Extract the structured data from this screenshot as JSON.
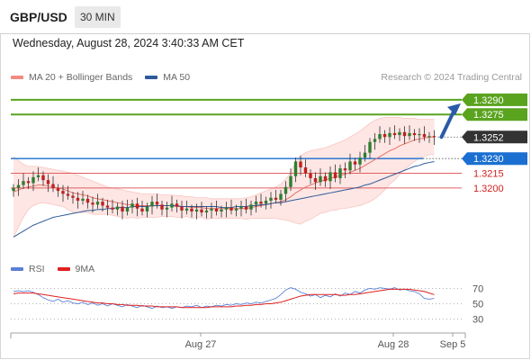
{
  "header": {
    "pair": "GBP/USD",
    "timeframe": "30 MIN",
    "datetime": "Wednesday, August 28, 2024 3:40:33 AM CET",
    "copyright": "Research © 2024 Trading Central"
  },
  "legend_main": [
    {
      "label": "MA 20 + Bollinger Bands",
      "color": "#f28b82"
    },
    {
      "label": "MA 50",
      "color": "#2f5b9a"
    }
  ],
  "legend_rsi": [
    {
      "label": "RSI",
      "color": "#5b7fd6"
    },
    {
      "label": "9MA",
      "color": "#e02020"
    }
  ],
  "colors": {
    "resistance": "#5aa31f",
    "current": "#333333",
    "pivot": "#1a6fd1",
    "support": "#e06060",
    "support_text": "#d32020",
    "bull": "#2f7d2f",
    "bear": "#c02020",
    "band_fill": "#fde3e1",
    "arrow": "#2a5aa8"
  },
  "chart_data": {
    "type": "candlestick",
    "instrument": "GBP/USD",
    "interval": "30 MIN",
    "x_ticks": [
      "Aug 27",
      "Aug 28",
      "Sep 5"
    ],
    "y_range": [
      1.3142,
      1.33
    ],
    "levels": [
      {
        "value": 1.329,
        "label": "1.3290",
        "kind": "resistance"
      },
      {
        "value": 1.3275,
        "label": "1.3275",
        "kind": "resistance"
      },
      {
        "value": 1.3252,
        "label": "1.3252",
        "kind": "current"
      },
      {
        "value": 1.323,
        "label": "1.3230",
        "kind": "pivot"
      },
      {
        "value": 1.3215,
        "label": "1.3215",
        "kind": "support"
      },
      {
        "value": 1.32,
        "label": "1.3200",
        "kind": "support"
      }
    ],
    "close": [
      1.32,
      1.3203,
      1.3207,
      1.3205,
      1.3211,
      1.3213,
      1.3208,
      1.3204,
      1.32,
      1.3197,
      1.3194,
      1.3192,
      1.319,
      1.3187,
      1.3189,
      1.3185,
      1.3183,
      1.3186,
      1.3182,
      1.318,
      1.3178,
      1.3181,
      1.3176,
      1.318,
      1.3184,
      1.3179,
      1.3176,
      1.3181,
      1.3186,
      1.3183,
      1.3178,
      1.318,
      1.3184,
      1.3181,
      1.3177,
      1.3179,
      1.3176,
      1.3178,
      1.3175,
      1.3177,
      1.3179,
      1.3176,
      1.3178,
      1.318,
      1.3177,
      1.3179,
      1.3181,
      1.3178,
      1.3183,
      1.3186,
      1.3184,
      1.3187,
      1.319,
      1.3188,
      1.3194,
      1.3201,
      1.3212,
      1.3227,
      1.3221,
      1.3215,
      1.321,
      1.3206,
      1.3212,
      1.3207,
      1.3216,
      1.321,
      1.322,
      1.3218,
      1.3227,
      1.3224,
      1.3231,
      1.3236,
      1.3247,
      1.325,
      1.3255,
      1.3252,
      1.3256,
      1.3254,
      1.3257,
      1.3253,
      1.3256,
      1.3254,
      1.3255,
      1.3252,
      1.3253,
      1.3252
    ],
    "ma20": [
      1.3196,
      1.3198,
      1.32,
      1.3201,
      1.3202,
      1.3203,
      1.3203,
      1.3202,
      1.3201,
      1.32,
      1.3199,
      1.3197,
      1.3195,
      1.3194,
      1.3193,
      1.3192,
      1.319,
      1.3189,
      1.3188,
      1.3187,
      1.3186,
      1.3185,
      1.3184,
      1.3183,
      1.3183,
      1.3182,
      1.3182,
      1.3182,
      1.3182,
      1.3182,
      1.3182,
      1.3182,
      1.3182,
      1.3181,
      1.3181,
      1.3181,
      1.318,
      1.318,
      1.318,
      1.3179,
      1.3179,
      1.3179,
      1.3179,
      1.3179,
      1.3179,
      1.3179,
      1.3179,
      1.3179,
      1.318,
      1.3181,
      1.3182,
      1.3183,
      1.3184,
      1.3185,
      1.3186,
      1.3188,
      1.3191,
      1.3195,
      1.3198,
      1.3201,
      1.3203,
      1.3205,
      1.3207,
      1.3208,
      1.321,
      1.3211,
      1.3213,
      1.3214,
      1.3216,
      1.3218,
      1.322,
      1.3223,
      1.3226,
      1.3229,
      1.3232,
      1.3235,
      1.3238,
      1.324,
      1.3243,
      1.3245,
      1.3247,
      1.3249,
      1.325,
      1.3251,
      1.3252,
      1.3252
    ],
    "bb_upper": [
      1.3232,
      1.3228,
      1.3224,
      1.3222,
      1.3222,
      1.3222,
      1.3221,
      1.322,
      1.3219,
      1.3218,
      1.3217,
      1.3216,
      1.3215,
      1.3213,
      1.3211,
      1.3209,
      1.3207,
      1.3205,
      1.3203,
      1.3201,
      1.32,
      1.3199,
      1.3198,
      1.3197,
      1.3196,
      1.3195,
      1.3194,
      1.3194,
      1.3194,
      1.3194,
      1.3193,
      1.3193,
      1.3193,
      1.3192,
      1.3192,
      1.3191,
      1.3191,
      1.319,
      1.319,
      1.319,
      1.3189,
      1.3189,
      1.3189,
      1.3189,
      1.3189,
      1.3189,
      1.3189,
      1.319,
      1.3191,
      1.3193,
      1.3195,
      1.3197,
      1.3199,
      1.3201,
      1.3204,
      1.3209,
      1.3216,
      1.3226,
      1.3233,
      1.3236,
      1.3238,
      1.3239,
      1.324,
      1.3241,
      1.3243,
      1.3245,
      1.3247,
      1.3249,
      1.3252,
      1.3255,
      1.3258,
      1.3262,
      1.3266,
      1.3269,
      1.3271,
      1.3272,
      1.3272,
      1.3272,
      1.3272,
      1.3271,
      1.3271,
      1.3271,
      1.327,
      1.327,
      1.327,
      1.327
    ],
    "bb_lower": [
      1.315,
      1.316,
      1.317,
      1.3178,
      1.3182,
      1.3184,
      1.3185,
      1.3184,
      1.3183,
      1.3182,
      1.3181,
      1.3178,
      1.3175,
      1.3175,
      1.3175,
      1.3175,
      1.3173,
      1.3173,
      1.3173,
      1.3173,
      1.3172,
      1.3171,
      1.317,
      1.3169,
      1.317,
      1.3169,
      1.317,
      1.317,
      1.317,
      1.317,
      1.3171,
      1.3171,
      1.3171,
      1.317,
      1.317,
      1.3171,
      1.3169,
      1.317,
      1.317,
      1.3168,
      1.3169,
      1.3169,
      1.3169,
      1.3169,
      1.3169,
      1.3169,
      1.3169,
      1.3168,
      1.3169,
      1.3169,
      1.3169,
      1.3169,
      1.3169,
      1.3169,
      1.3168,
      1.3167,
      1.3166,
      1.3164,
      1.3163,
      1.3166,
      1.3168,
      1.3171,
      1.3174,
      1.3175,
      1.3177,
      1.3177,
      1.3179,
      1.3179,
      1.318,
      1.3181,
      1.3182,
      1.3184,
      1.3186,
      1.3189,
      1.3193,
      1.3198,
      1.3204,
      1.3208,
      1.3214,
      1.3219,
      1.3223,
      1.3227,
      1.323,
      1.3232,
      1.3234,
      1.3234
    ],
    "ma50": [
      1.315,
      1.3153,
      1.3156,
      1.3159,
      1.3162,
      1.3164,
      1.3166,
      1.3168,
      1.317,
      1.3171,
      1.3172,
      1.3173,
      1.3174,
      1.3175,
      1.3176,
      1.3177,
      1.3177,
      1.3178,
      1.3178,
      1.3179,
      1.3179,
      1.318,
      1.318,
      1.318,
      1.3181,
      1.3181,
      1.3181,
      1.3181,
      1.3182,
      1.3182,
      1.3182,
      1.3182,
      1.3182,
      1.3182,
      1.3181,
      1.3181,
      1.3181,
      1.3181,
      1.3181,
      1.3181,
      1.3181,
      1.3181,
      1.318,
      1.318,
      1.318,
      1.3181,
      1.3181,
      1.3181,
      1.3182,
      1.3182,
      1.3183,
      1.3183,
      1.3184,
      1.3185,
      1.3185,
      1.3186,
      1.3187,
      1.3188,
      1.3189,
      1.319,
      1.3191,
      1.3192,
      1.3193,
      1.3194,
      1.3195,
      1.3196,
      1.3197,
      1.3198,
      1.3199,
      1.32,
      1.3201,
      1.3203,
      1.3204,
      1.3206,
      1.3208,
      1.321,
      1.3212,
      1.3214,
      1.3216,
      1.3218,
      1.322,
      1.3222,
      1.3223,
      1.3225,
      1.3226,
      1.3227
    ],
    "rsi_levels": [
      70,
      50,
      30
    ],
    "rsi": [
      66,
      67,
      66,
      67,
      65,
      62,
      58,
      55,
      53,
      56,
      52,
      54,
      51,
      50,
      52,
      49,
      51,
      48,
      50,
      47,
      50,
      48,
      46,
      49,
      47,
      45,
      48,
      46,
      44,
      47,
      45,
      46,
      44,
      46,
      45,
      47,
      46,
      48,
      45,
      47,
      46,
      48,
      47,
      49,
      48,
      50,
      49,
      51,
      50,
      52,
      51,
      53,
      55,
      57,
      62,
      68,
      71,
      69,
      65,
      63,
      60,
      62,
      58,
      61,
      59,
      63,
      60,
      64,
      62,
      66,
      64,
      68,
      70,
      69,
      71,
      70,
      69,
      71,
      68,
      69,
      67,
      66,
      63,
      57,
      56,
      57
    ],
    "rsi_ma": [
      63,
      64,
      64,
      64,
      64,
      63,
      62,
      61,
      60,
      59,
      58,
      57,
      56,
      55,
      54,
      53,
      52,
      51,
      51,
      50,
      50,
      49,
      49,
      48,
      48,
      48,
      47,
      47,
      47,
      46,
      46,
      46,
      46,
      46,
      45,
      45,
      45,
      45,
      45,
      45,
      46,
      46,
      46,
      46,
      46,
      47,
      47,
      48,
      48,
      49,
      49,
      50,
      50,
      51,
      52,
      54,
      56,
      58,
      60,
      61,
      62,
      62,
      62,
      62,
      62,
      62,
      61,
      61,
      62,
      62,
      63,
      64,
      65,
      66,
      67,
      68,
      69,
      69,
      69,
      69,
      69,
      68,
      67,
      66,
      64,
      62
    ]
  }
}
